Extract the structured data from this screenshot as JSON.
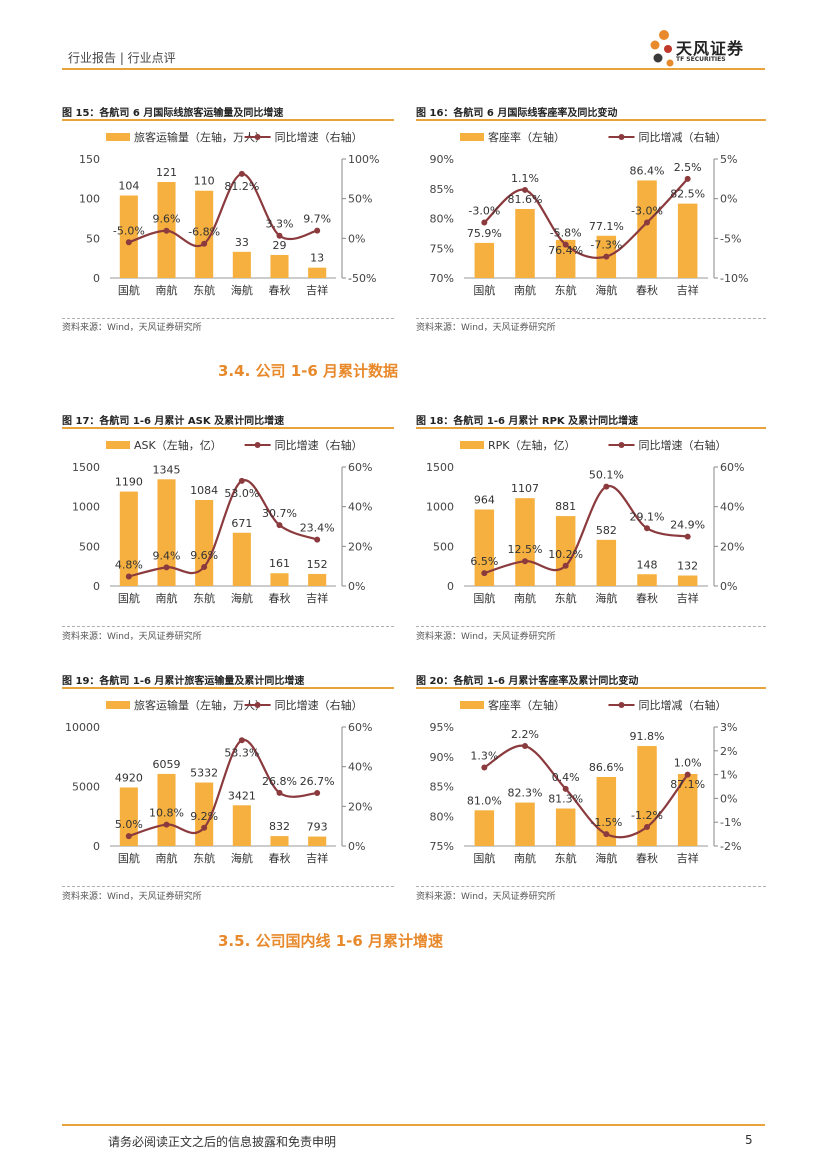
{
  "header": {
    "left_text": "行业报告 | 行业点评",
    "logo_cn": "天风证券",
    "logo_en": "TF SECURITIES"
  },
  "sections": {
    "s34": "3.4. 公司 1-6 月累计数据",
    "s35": "3.5. 公司国内线 1-6 月累计增速"
  },
  "footer": {
    "disclaimer": "请务必阅读正文之后的信息披露和免责申明",
    "page": "5"
  },
  "colors": {
    "bar": "#f5b03f",
    "line": "#8b3a3e",
    "accent": "#e8a33d",
    "section": "#e8892b"
  },
  "figures": [
    {
      "title": "图 15：各航司 6 月国际线旅客运输量及同比增速",
      "source": "资料来源：Wind，天风证券研究所"
    },
    {
      "title": "图 16：各航司 6 月国际线客座率及同比变动",
      "source": "资料来源：Wind，天风证券研究所"
    },
    {
      "title": "图 17：各航司 1-6 月累计 ASK 及累计同比增速",
      "source": "资料来源：Wind，天风证券研究所"
    },
    {
      "title": "图 18：各航司 1-6 月累计 RPK 及累计同比增速",
      "source": "资料来源：Wind，天风证券研究所"
    },
    {
      "title": "图 19：各航司 1-6 月累计旅客运输量及累计同比增速",
      "source": "资料来源：Wind，天风证券研究所"
    },
    {
      "title": "图 20：各航司 1-6 月累计客座率及累计同比变动",
      "source": "资料来源：Wind，天风证券研究所"
    }
  ],
  "chart_data": [
    {
      "type": "bar",
      "categories": [
        "国航",
        "南航",
        "东航",
        "海航",
        "春秋",
        "吉祥"
      ],
      "series": [
        {
          "name": "旅客运输量（左轴，万人）",
          "kind": "bar",
          "axis": "left",
          "values": [
            104,
            121,
            110,
            33,
            29,
            13
          ],
          "labels": [
            "104",
            "121",
            "110",
            "33",
            "29",
            "13"
          ]
        },
        {
          "name": "同比增速（右轴）",
          "kind": "line",
          "axis": "right",
          "values": [
            -5.0,
            9.6,
            -6.8,
            81.2,
            3.3,
            9.7
          ],
          "labels": [
            "-5.0%",
            "9.6%",
            "-6.8%",
            "81.2%",
            "3.3%",
            "9.7%"
          ]
        }
      ],
      "left_axis": {
        "min": 0,
        "max": 150,
        "ticks": [
          0,
          50,
          100,
          150
        ],
        "tick_labels": [
          "0",
          "50",
          "100",
          "150"
        ]
      },
      "right_axis": {
        "min": -50,
        "max": 100,
        "ticks": [
          -50,
          0,
          50,
          100
        ],
        "tick_labels": [
          "-50%",
          "0%",
          "50%",
          "100%"
        ]
      },
      "legend_position": "top"
    },
    {
      "type": "bar",
      "categories": [
        "国航",
        "南航",
        "东航",
        "海航",
        "春秋",
        "吉祥"
      ],
      "series": [
        {
          "name": "客座率（左轴）",
          "kind": "bar",
          "axis": "left",
          "values": [
            75.9,
            81.6,
            76.4,
            77.1,
            86.4,
            82.5
          ],
          "labels": [
            "75.9%",
            "81.6%",
            "76.4%",
            "77.1%",
            "86.4%",
            "82.5%"
          ]
        },
        {
          "name": "同比增减（右轴）",
          "kind": "line",
          "axis": "right",
          "values": [
            -3.0,
            1.1,
            -5.8,
            -7.3,
            -3.0,
            2.5
          ],
          "labels": [
            "-3.0%",
            "1.1%",
            "-5.8%",
            "-7.3%",
            "-3.0%",
            "2.5%"
          ]
        }
      ],
      "left_axis": {
        "min": 70,
        "max": 90,
        "ticks": [
          70,
          75,
          80,
          85,
          90
        ],
        "tick_labels": [
          "70%",
          "75%",
          "80%",
          "85%",
          "90%"
        ]
      },
      "right_axis": {
        "min": -10,
        "max": 5,
        "ticks": [
          -10,
          -5,
          0,
          5
        ],
        "tick_labels": [
          "-10%",
          "-5%",
          "0%",
          "5%"
        ]
      },
      "legend_position": "top"
    },
    {
      "type": "bar",
      "categories": [
        "国航",
        "南航",
        "东航",
        "海航",
        "春秋",
        "吉祥"
      ],
      "series": [
        {
          "name": "ASK（左轴，亿）",
          "kind": "bar",
          "axis": "left",
          "values": [
            1190,
            1345,
            1084,
            671,
            161,
            152
          ],
          "labels": [
            "1190",
            "1345",
            "1084",
            "671",
            "161",
            "152"
          ]
        },
        {
          "name": "同比增速（右轴）",
          "kind": "line",
          "axis": "right",
          "values": [
            4.8,
            9.4,
            9.6,
            53.0,
            30.7,
            23.4
          ],
          "labels": [
            "4.8%",
            "9.4%",
            "9.6%",
            "53.0%",
            "30.7%",
            "23.4%"
          ]
        }
      ],
      "left_axis": {
        "min": 0,
        "max": 1500,
        "ticks": [
          0,
          500,
          1000,
          1500
        ],
        "tick_labels": [
          "0",
          "500",
          "1000",
          "1500"
        ]
      },
      "right_axis": {
        "min": 0,
        "max": 60,
        "ticks": [
          0,
          20,
          40,
          60
        ],
        "tick_labels": [
          "0%",
          "20%",
          "40%",
          "60%"
        ]
      },
      "legend_position": "top"
    },
    {
      "type": "bar",
      "categories": [
        "国航",
        "南航",
        "东航",
        "海航",
        "春秋",
        "吉祥"
      ],
      "series": [
        {
          "name": "RPK（左轴，亿）",
          "kind": "bar",
          "axis": "left",
          "values": [
            964,
            1107,
            881,
            582,
            148,
            132
          ],
          "labels": [
            "964",
            "1107",
            "881",
            "582",
            "148",
            "132"
          ]
        },
        {
          "name": "同比增速（右轴）",
          "kind": "line",
          "axis": "right",
          "values": [
            6.5,
            12.5,
            10.2,
            50.1,
            29.1,
            24.9
          ],
          "labels": [
            "6.5%",
            "12.5%",
            "10.2%",
            "50.1%",
            "29.1%",
            "24.9%"
          ]
        }
      ],
      "left_axis": {
        "min": 0,
        "max": 1500,
        "ticks": [
          0,
          500,
          1000,
          1500
        ],
        "tick_labels": [
          "0",
          "500",
          "1000",
          "1500"
        ]
      },
      "right_axis": {
        "min": 0,
        "max": 60,
        "ticks": [
          0,
          20,
          40,
          60
        ],
        "tick_labels": [
          "0%",
          "20%",
          "40%",
          "60%"
        ]
      },
      "legend_position": "top"
    },
    {
      "type": "bar",
      "categories": [
        "国航",
        "南航",
        "东航",
        "海航",
        "春秋",
        "吉祥"
      ],
      "series": [
        {
          "name": "旅客运输量（左轴，万人）",
          "kind": "bar",
          "axis": "left",
          "values": [
            4920,
            6059,
            5332,
            3421,
            832,
            793
          ],
          "labels": [
            "4920",
            "6059",
            "5332",
            "3421",
            "832",
            "793"
          ]
        },
        {
          "name": "同比增速（右轴）",
          "kind": "line",
          "axis": "right",
          "values": [
            5.0,
            10.8,
            9.2,
            53.3,
            26.8,
            26.7
          ],
          "labels": [
            "5.0%",
            "10.8%",
            "9.2%",
            "53.3%",
            "26.8%",
            "26.7%"
          ]
        }
      ],
      "left_axis": {
        "min": 0,
        "max": 10000,
        "ticks": [
          0,
          5000,
          10000
        ],
        "tick_labels": [
          "0",
          "5000",
          "10000"
        ]
      },
      "right_axis": {
        "min": 0,
        "max": 60,
        "ticks": [
          0,
          20,
          40,
          60
        ],
        "tick_labels": [
          "0%",
          "20%",
          "40%",
          "60%"
        ]
      },
      "legend_position": "top"
    },
    {
      "type": "bar",
      "categories": [
        "国航",
        "南航",
        "东航",
        "海航",
        "春秋",
        "吉祥"
      ],
      "series": [
        {
          "name": "客座率（左轴）",
          "kind": "bar",
          "axis": "left",
          "values": [
            81.0,
            82.3,
            81.3,
            86.6,
            91.8,
            87.1
          ],
          "labels": [
            "81.0%",
            "82.3%",
            "81.3%",
            "86.6%",
            "91.8%",
            "87.1%"
          ]
        },
        {
          "name": "同比增减（右轴）",
          "kind": "line",
          "axis": "right",
          "values": [
            1.3,
            2.2,
            0.4,
            -1.5,
            -1.2,
            1.0
          ],
          "labels": [
            "1.3%",
            "2.2%",
            "0.4%",
            "-1.5%",
            "-1.2%",
            "1.0%"
          ]
        }
      ],
      "left_axis": {
        "min": 75,
        "max": 95,
        "ticks": [
          75,
          80,
          85,
          90,
          95
        ],
        "tick_labels": [
          "75%",
          "80%",
          "85%",
          "90%",
          "95%"
        ]
      },
      "right_axis": {
        "min": -2,
        "max": 3,
        "ticks": [
          -2,
          -1,
          0,
          1,
          2,
          3
        ],
        "tick_labels": [
          "-2%",
          "-1%",
          "0%",
          "1%",
          "2%",
          "3%"
        ]
      },
      "legend_position": "top"
    }
  ]
}
